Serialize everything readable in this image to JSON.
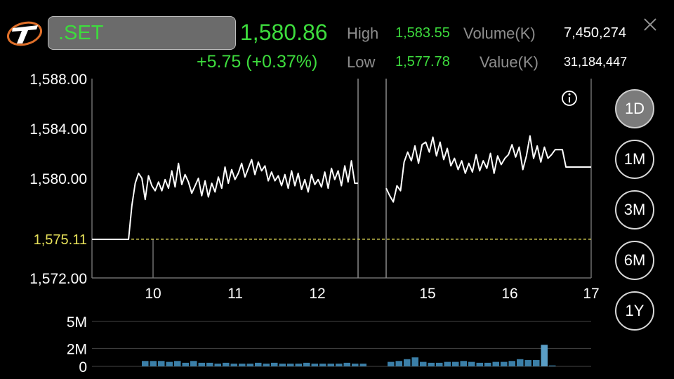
{
  "header": {
    "symbol": ".SET",
    "last_price": "1,580.86",
    "change": "+5.75 (+0.37%)",
    "high_label": "High",
    "high_value": "1,583.55",
    "low_label": "Low",
    "low_value": "1,577.78",
    "volume_label": "Volume(K)",
    "volume_value": "7,450,274",
    "value_label": "Value(K)",
    "value_value": "31,184,447"
  },
  "colors": {
    "up": "#3ddc3d",
    "prev_close": "#e8e25a",
    "volume_bar": "#3b7fa8"
  },
  "periods": [
    {
      "label": "1D",
      "active": true
    },
    {
      "label": "1M",
      "active": false
    },
    {
      "label": "3M",
      "active": false
    },
    {
      "label": "6M",
      "active": false
    },
    {
      "label": "1Y",
      "active": false
    }
  ],
  "icons": {
    "logo": "broker-logo-icon",
    "info": "info-icon",
    "close": "close-icon"
  },
  "chart_data": {
    "type": "line",
    "title": "",
    "ylim": [
      1572,
      1588
    ],
    "y_ticks": [
      "1,588.00",
      "1,584.00",
      "1,580.00",
      "1,572.00"
    ],
    "prev_close_label": "1,575.11",
    "prev_close": 1575.11,
    "x_ticks": [
      "10",
      "11",
      "12",
      "15",
      "16",
      "17"
    ],
    "sessions": [
      [
        1575.1,
        1575.1,
        1575.1,
        1575.1,
        1575.1,
        1575.1,
        1575.1,
        1575.1,
        1575.1,
        1575.1,
        1575.1,
        1575.1,
        1577.8,
        1579.6,
        1580.4,
        1580.0,
        1578.3,
        1580.2,
        1579.4,
        1579.0,
        1579.7,
        1579.0,
        1579.9,
        1579.2,
        1580.6,
        1579.3,
        1581.2,
        1579.5,
        1580.3,
        1579.7,
        1578.8,
        1579.4,
        1580.0,
        1578.6,
        1579.8,
        1578.5,
        1579.6,
        1578.9,
        1580.1,
        1579.2,
        1580.9,
        1579.6,
        1580.7,
        1579.9,
        1580.4,
        1581.2,
        1580.1,
        1580.8,
        1581.5,
        1580.3,
        1581.3,
        1580.6,
        1581.0,
        1579.8,
        1580.5,
        1579.8,
        1580.2,
        1579.4,
        1580.3,
        1579.2,
        1580.6,
        1579.4,
        1580.4,
        1579.1,
        1579.9,
        1578.9,
        1580.3,
        1579.5,
        1579.9,
        1579.3,
        1580.5,
        1579.2,
        1580.8,
        1579.9,
        1580.6,
        1579.4,
        1581.0,
        1579.7,
        1581.4,
        1579.6,
        1579.6
      ],
      [
        1579.2,
        1578.6,
        1578.1,
        1579.4,
        1579.0,
        1581.3,
        1582.1,
        1581.4,
        1582.6,
        1581.2,
        1582.7,
        1582.9,
        1582.1,
        1583.3,
        1581.8,
        1582.9,
        1581.5,
        1582.4,
        1581.0,
        1581.6,
        1580.7,
        1581.4,
        1580.4,
        1581.2,
        1580.5,
        1581.9,
        1580.6,
        1581.4,
        1580.8,
        1582.0,
        1580.4,
        1581.8,
        1581.1,
        1581.6,
        1581.9,
        1582.7,
        1581.7,
        1582.5,
        1580.7,
        1581.8,
        1583.4,
        1581.6,
        1582.6,
        1581.3,
        1582.5,
        1581.6,
        1581.9,
        1582.3,
        1582.3,
        1582.3,
        1580.9,
        1580.9,
        1580.9,
        1580.9,
        1580.9,
        1580.9,
        1580.9,
        1580.9
      ],
      [
        1580.9
      ]
    ],
    "volume": {
      "y_ticks": [
        "5M",
        "2M",
        "0"
      ],
      "ylim": [
        0,
        5
      ],
      "sessions": [
        [
          0.6,
          0.6,
          0.6,
          0.5,
          0.6,
          0.4,
          0.6,
          0.4,
          0.4,
          0.3,
          0.4,
          0.3,
          0.3,
          0.3,
          0.4,
          0.3,
          0.4,
          0.3,
          0.3,
          0.3,
          0.4,
          0.3,
          0.3,
          0.3,
          0.3,
          0.4,
          0.3,
          0.3
        ],
        [
          0.5,
          0.6,
          0.8,
          1.0,
          0.5,
          0.4,
          0.4,
          0.5,
          0.5,
          0.6,
          0.5,
          0.4,
          0.4,
          0.5,
          0.5,
          0.6,
          0.8,
          0.7,
          0.7,
          2.4,
          0.1
        ]
      ]
    }
  }
}
